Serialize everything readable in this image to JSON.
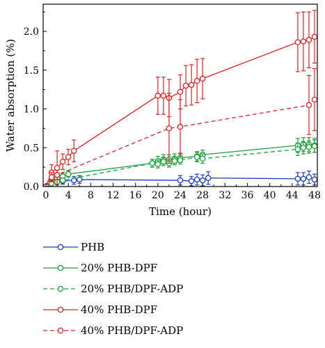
{
  "chart_data": {
    "type": "line",
    "title": "",
    "xlabel": "Time (hour)",
    "ylabel": "Water absorption (%)",
    "xlim": [
      -0.5,
      48.5
    ],
    "ylim": [
      0.0,
      2.35
    ],
    "x_ticks": [
      0,
      4,
      8,
      12,
      16,
      20,
      24,
      28,
      32,
      36,
      40,
      44,
      48
    ],
    "x_tick_labels": [
      "0",
      "4",
      "8",
      "12",
      "16",
      "20",
      "24",
      "28",
      "32",
      "36",
      "40",
      "44",
      "48"
    ],
    "y_ticks": [
      0.0,
      0.5,
      1.0,
      1.5,
      2.0
    ],
    "y_tick_labels": [
      "0.0",
      "0.5",
      "1.0",
      "1.5",
      "2.0"
    ],
    "grid": false,
    "legend_position": "below",
    "series": [
      {
        "name": "PHB",
        "color": "#1f3fbf",
        "line": "solid",
        "marker": "open-circle",
        "x": [
          0,
          1,
          2,
          3,
          5,
          6,
          24,
          26,
          27,
          28,
          29,
          45,
          46,
          47,
          48
        ],
        "y": [
          0.0,
          0.04,
          0.06,
          0.07,
          0.08,
          0.09,
          0.08,
          0.07,
          0.09,
          0.08,
          0.11,
          0.1,
          0.1,
          0.12,
          0.09
        ],
        "err": [
          0.0,
          0.02,
          0.03,
          0.04,
          0.05,
          0.05,
          0.06,
          0.06,
          0.07,
          0.07,
          0.08,
          0.08,
          0.08,
          0.08,
          0.07
        ]
      },
      {
        "name": "20% PHB-DPF",
        "color": "#1aa038",
        "line": "solid",
        "marker": "open-circle",
        "x": [
          0,
          1,
          2,
          3,
          4,
          19,
          20,
          21,
          22,
          23,
          24,
          27,
          28,
          45,
          46,
          47,
          48
        ],
        "y": [
          0.0,
          0.07,
          0.1,
          0.13,
          0.16,
          0.3,
          0.33,
          0.35,
          0.35,
          0.36,
          0.37,
          0.39,
          0.41,
          0.53,
          0.54,
          0.54,
          0.53
        ],
        "err": [
          0.0,
          0.03,
          0.03,
          0.04,
          0.04,
          0.05,
          0.06,
          0.06,
          0.06,
          0.06,
          0.06,
          0.06,
          0.06,
          0.09,
          0.09,
          0.09,
          0.09
        ]
      },
      {
        "name": "20% PHB/DPF-ADP",
        "color": "#1aa038",
        "line": "dashed",
        "marker": "open-circle",
        "x": [
          0,
          1,
          2,
          3,
          19,
          20,
          21,
          22,
          23,
          24,
          27,
          28,
          45,
          46,
          47,
          48
        ],
        "y": [
          0.0,
          0.04,
          0.06,
          0.08,
          0.3,
          0.29,
          0.32,
          0.3,
          0.33,
          0.34,
          0.38,
          0.36,
          0.48,
          0.5,
          0.51,
          0.52
        ],
        "err": [
          0.0,
          0.02,
          0.03,
          0.03,
          0.05,
          0.05,
          0.05,
          0.05,
          0.05,
          0.05,
          0.06,
          0.06,
          0.08,
          0.08,
          0.08,
          0.08
        ]
      },
      {
        "name": "40% PHB-DPF",
        "color": "#e02020",
        "line": "solid",
        "marker": "open-circle",
        "x": [
          0,
          1,
          2,
          3,
          4,
          5,
          20,
          21,
          22,
          24,
          25,
          26,
          27,
          28,
          45,
          46,
          47,
          48
        ],
        "y": [
          0.0,
          0.18,
          0.24,
          0.32,
          0.38,
          0.46,
          1.17,
          1.17,
          1.14,
          1.22,
          1.3,
          1.31,
          1.36,
          1.39,
          1.86,
          1.87,
          1.89,
          1.93
        ],
        "err": [
          0.0,
          0.1,
          0.22,
          0.1,
          0.1,
          0.14,
          0.24,
          0.24,
          0.24,
          0.22,
          0.26,
          0.26,
          0.28,
          0.26,
          0.38,
          0.38,
          0.36,
          0.34
        ]
      },
      {
        "name": "40% PHB/DPF-ADP",
        "color": "#e02020",
        "line": "dashed",
        "marker": "open-circle",
        "x": [
          0,
          1,
          2,
          22,
          24,
          47,
          48
        ],
        "y": [
          0.0,
          0.12,
          0.15,
          0.75,
          0.77,
          1.05,
          1.12
        ],
        "err": [
          0.0,
          0.06,
          0.06,
          0.45,
          0.35,
          0.38,
          0.4
        ]
      }
    ]
  }
}
